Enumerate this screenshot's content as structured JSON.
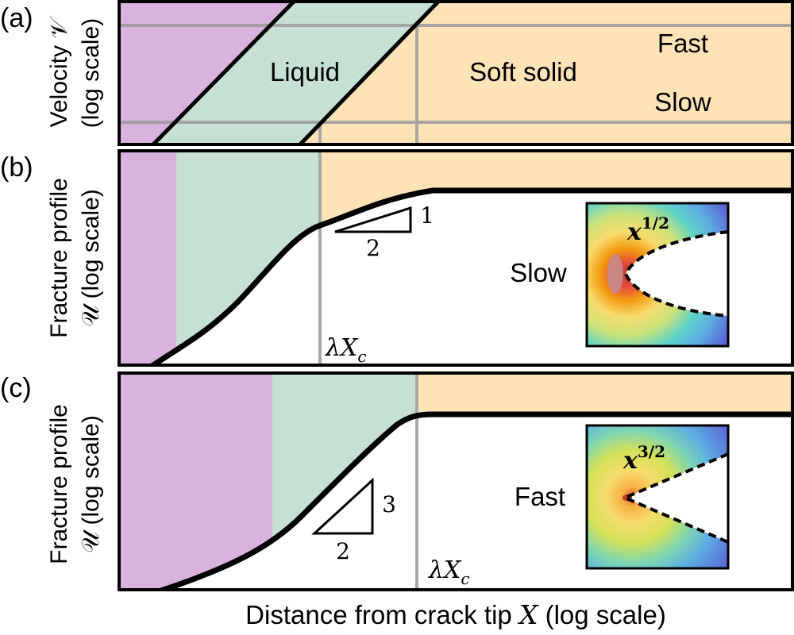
{
  "panels": {
    "a": {
      "letter": "(a)",
      "ylabel_line1": "Velocity 𝒱",
      "ylabel_line2": "(log scale)",
      "regions": {
        "liquid": "Liquid",
        "soft_solid": "Soft solid"
      },
      "speeds": {
        "fast": "Fast",
        "slow": "Slow"
      }
    },
    "b": {
      "letter": "(b)",
      "ylabel_line1": "Fracture profile",
      "ylabel_line2": "𝒰 (log scale)",
      "slope_rise": "1",
      "slope_run": "2",
      "marker_label": "λX",
      "marker_sub": "c",
      "inset_label": "Slow",
      "inset_power_base": "x",
      "inset_power_exp": "1/2"
    },
    "c": {
      "letter": "(c)",
      "ylabel_line1": "Fracture profile",
      "ylabel_line2": "𝒰 (log scale)",
      "slope_rise": "3",
      "slope_run": "2",
      "marker_label": "λX",
      "marker_sub": "c",
      "inset_label": "Fast",
      "inset_power_base": "x",
      "inset_power_exp": "3/2"
    }
  },
  "xlabel_text": "Distance from crack tip ",
  "xlabel_var": "X",
  "xlabel_suffix": " (log scale)",
  "colors": {
    "purple": "#d9b3dd",
    "green": "#c6e1d3",
    "orange": "#fde3b6",
    "marker_line": "#a8a8a8",
    "curve": "#000000"
  }
}
